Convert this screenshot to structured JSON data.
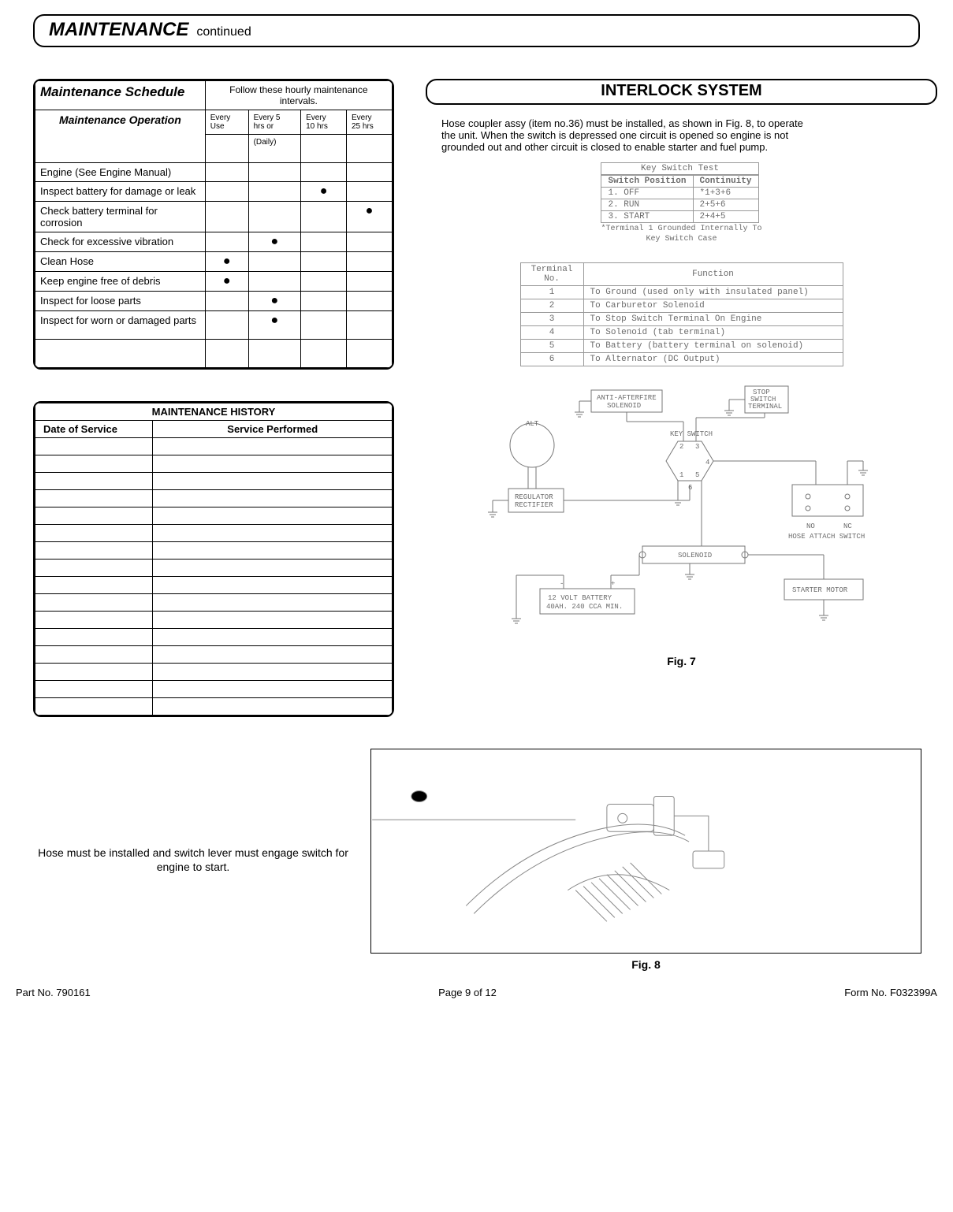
{
  "header": {
    "title": "MAINTENANCE",
    "subtitle": "continued"
  },
  "schedule": {
    "title": "Maintenance Schedule",
    "subtitle": "Follow these hourly maintenance intervals.",
    "op_header": "Maintenance Operation",
    "cols": [
      {
        "l1": "Every",
        "l2": "Use"
      },
      {
        "l1": "Every 5",
        "l2": "hrs or",
        "l3": "(Daily)"
      },
      {
        "l1": "Every",
        "l2": "10 hrs"
      },
      {
        "l1": "Every",
        "l2": "25 hrs"
      }
    ],
    "rows": [
      {
        "op": "Engine (See Engine Manual)",
        "marks": [
          "",
          "",
          "",
          ""
        ]
      },
      {
        "op": "Inspect battery for damage or leak",
        "marks": [
          "",
          "",
          "●",
          ""
        ]
      },
      {
        "op": "Check battery terminal for corrosion",
        "marks": [
          "",
          "",
          "",
          "●"
        ]
      },
      {
        "op": "Check for excessive vibration",
        "marks": [
          "",
          "●",
          "",
          ""
        ]
      },
      {
        "op": "Clean Hose",
        "marks": [
          "●",
          "",
          "",
          ""
        ]
      },
      {
        "op": "Keep engine free of debris",
        "marks": [
          "●",
          "",
          "",
          ""
        ]
      },
      {
        "op": "Inspect for loose parts",
        "marks": [
          "",
          "●",
          "",
          ""
        ]
      },
      {
        "op": "Inspect for worn or damaged parts",
        "marks": [
          "",
          "●",
          "",
          ""
        ]
      }
    ]
  },
  "history": {
    "title": "MAINTENANCE HISTORY",
    "col1": "Date of Service",
    "col2": "Service Performed",
    "blank_rows": 16
  },
  "interlock": {
    "title": "INTERLOCK SYSTEM",
    "text": "Hose coupler assy (item no.36) must be installed, as shown in Fig. 8,  to operate the unit. When  the switch is depressed one circuit is opened so engine is not grounded out and other circuit is closed to enable starter and fuel pump."
  },
  "key_switch": {
    "caption": "Key Switch Test",
    "headers": [
      "Switch Position",
      "Continuity"
    ],
    "rows": [
      [
        "1. OFF",
        "*1+3+6"
      ],
      [
        "2. RUN",
        "2+5+6"
      ],
      [
        "3. START",
        "2+4+5"
      ]
    ],
    "note1": "*Terminal 1 Grounded Internally To",
    "note2": "Key Switch Case"
  },
  "terminal": {
    "headers": [
      "Terminal No.",
      "Function"
    ],
    "rows": [
      [
        "1",
        "To Ground (used only with insulated panel)"
      ],
      [
        "2",
        "To Carburetor Solenoid"
      ],
      [
        "3",
        "To Stop Switch Terminal On Engine"
      ],
      [
        "4",
        "To Solenoid (tab terminal)"
      ],
      [
        "5",
        "To Battery (battery terminal on solenoid)"
      ],
      [
        "6",
        "To Alternator (DC Output)"
      ]
    ]
  },
  "diagram": {
    "labels": {
      "anti_afterfire": "ANTI-AFTERFIRE\nSOLENOID",
      "stop_switch": "STOP\nSWITCH\nTERMINAL",
      "alt": "ALT",
      "key_switch": "KEY SWITCH",
      "regulator": "REGULATOR\nRECTIFIER",
      "hose_attach": "HOSE ATTACH SWITCH",
      "solenoid": "SOLENOID",
      "starter": "STARTER MOTOR",
      "battery": "12 VOLT BATTERY\n40AH. 240 CCA MIN.",
      "no": "NO",
      "nc": "NC"
    },
    "fig_label": "Fig. 7"
  },
  "fig8": {
    "note": "Hose must be installed and switch lever must engage switch for engine to start.",
    "label": "Fig. 8"
  },
  "footer": {
    "left": "Part No. 790161",
    "center": "Page 9 of 12",
    "right": "Form No. F032399A"
  }
}
